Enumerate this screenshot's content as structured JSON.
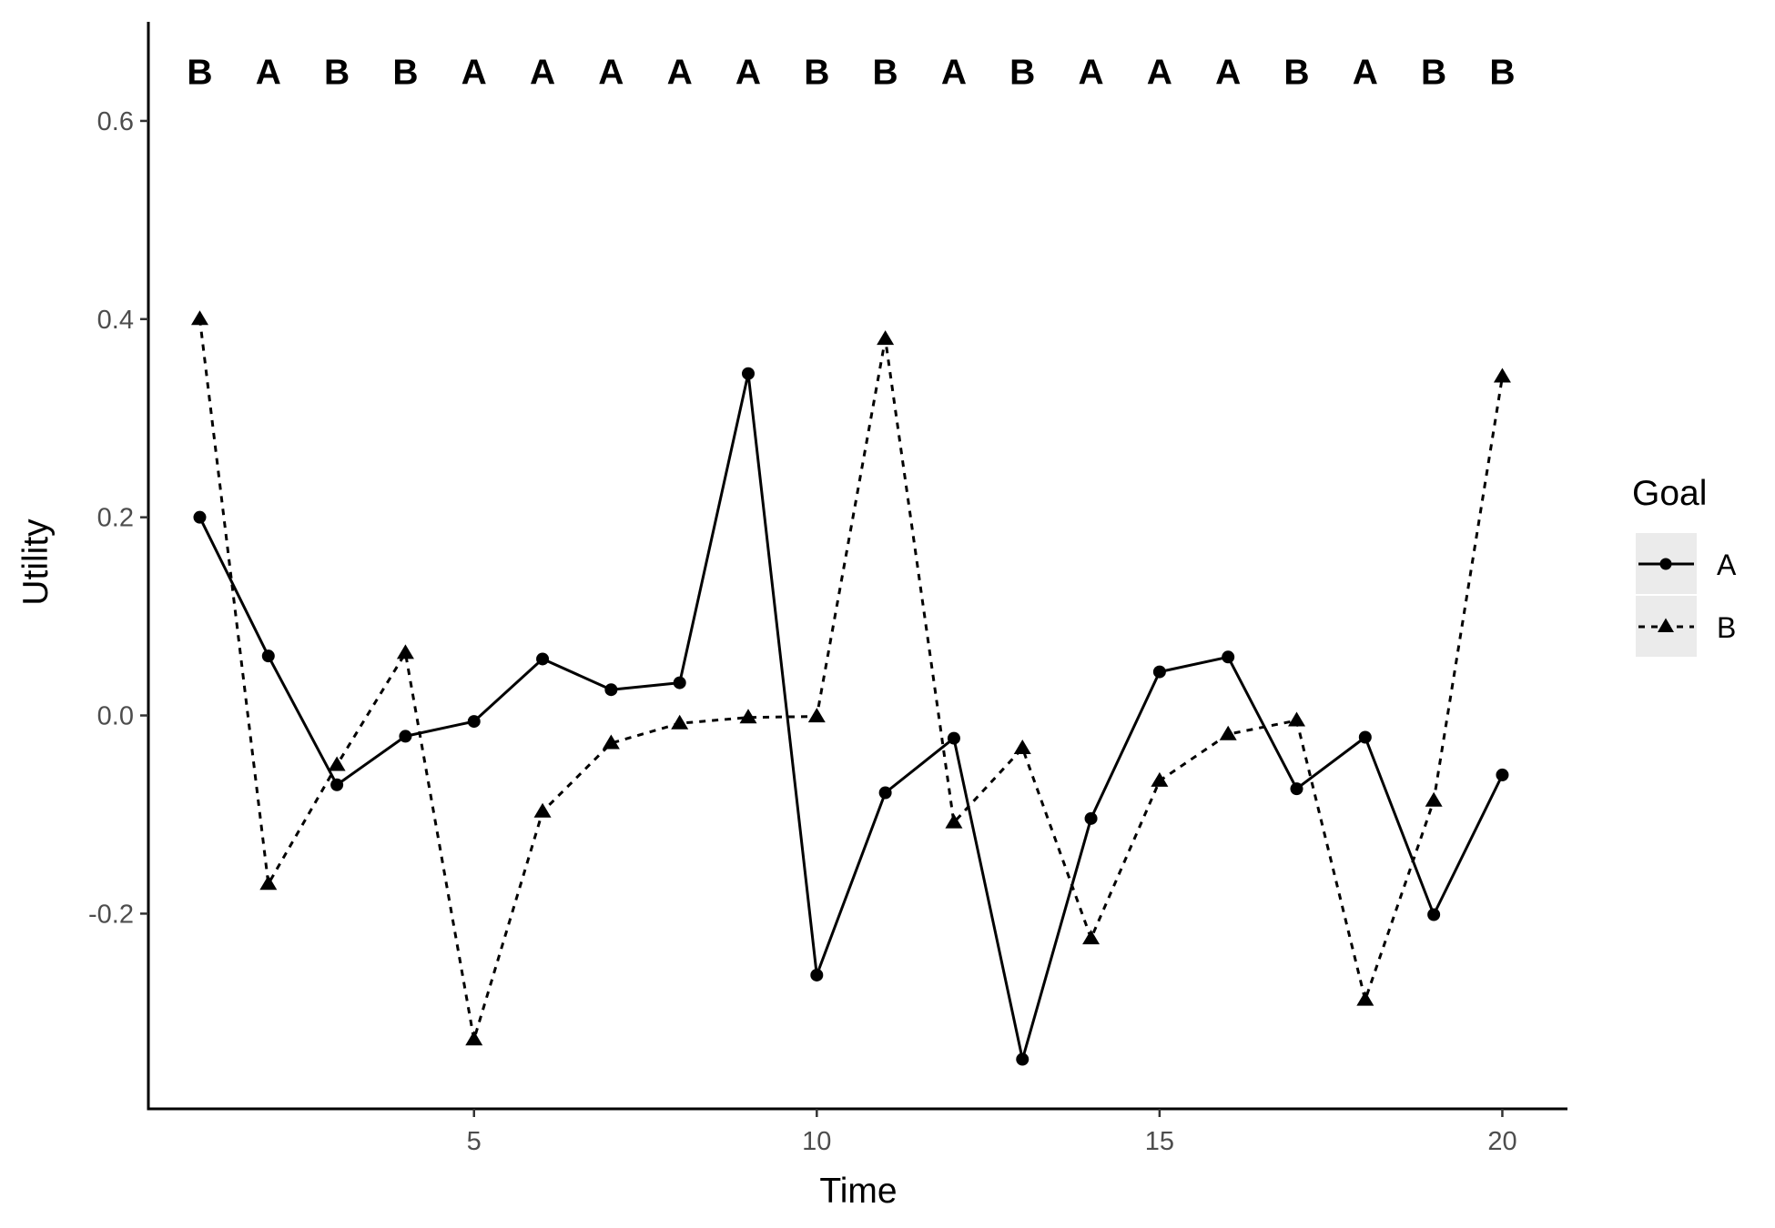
{
  "chart_data": {
    "type": "line",
    "xlabel": "Time",
    "ylabel": "Utility",
    "xlim": [
      0.25,
      20.95
    ],
    "ylim": [
      -0.397,
      0.7
    ],
    "x_ticks": [
      5,
      10,
      15,
      20
    ],
    "x_tick_labels": [
      "5",
      "10",
      "15",
      "20"
    ],
    "y_ticks": [
      -0.2,
      0.0,
      0.2,
      0.4,
      0.6
    ],
    "y_tick_labels": [
      "-0.2",
      "0.0",
      "0.2",
      "0.4",
      "0.6"
    ],
    "grid": false,
    "x": [
      1,
      2,
      3,
      4,
      5,
      6,
      7,
      8,
      9,
      10,
      11,
      12,
      13,
      14,
      15,
      16,
      17,
      18,
      19,
      20
    ],
    "series": [
      {
        "name": "A",
        "line_style": "solid",
        "marker": "circle",
        "values": [
          0.2,
          0.06,
          -0.07,
          -0.021,
          -0.006,
          0.057,
          0.026,
          0.033,
          0.345,
          -0.262,
          -0.078,
          -0.023,
          -0.347,
          -0.104,
          0.044,
          0.059,
          -0.074,
          -0.022,
          -0.201,
          -0.06
        ]
      },
      {
        "name": "B",
        "line_style": "dashed",
        "marker": "triangle",
        "values": [
          0.4,
          -0.17,
          -0.05,
          0.063,
          -0.327,
          -0.097,
          -0.028,
          -0.008,
          -0.002,
          -0.001,
          0.38,
          -0.108,
          -0.033,
          -0.225,
          -0.066,
          -0.019,
          -0.005,
          -0.287,
          -0.086,
          0.342
        ]
      }
    ],
    "choice_labels": [
      "B",
      "A",
      "B",
      "B",
      "A",
      "A",
      "A",
      "A",
      "A",
      "B",
      "B",
      "A",
      "B",
      "A",
      "A",
      "A",
      "B",
      "A",
      "B",
      "B"
    ],
    "choice_labels_y": 0.65,
    "legend": {
      "title": "Goal",
      "position": "right",
      "entries": [
        "A",
        "B"
      ]
    },
    "colors": {
      "line": "#000000",
      "axis": "#000000",
      "tick_text": "#4d4d4d",
      "legend_key_bg": "#ebebeb"
    }
  }
}
